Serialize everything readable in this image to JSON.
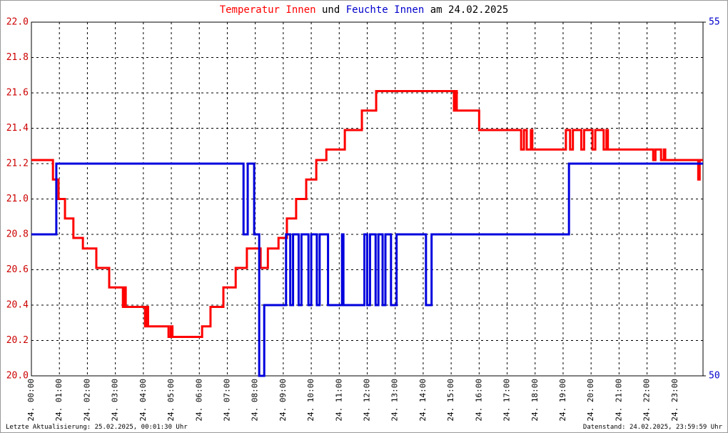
{
  "chart_data": {
    "type": "line",
    "title": [
      "Temperatur Innen",
      "und",
      "Feuchte Innen",
      "am 24.02.2025"
    ],
    "title_colors": [
      "#ff0000",
      "#000000",
      "#0000cc",
      "#000000"
    ],
    "footer_left": "Letzte Aktualisierung: 25.02.2025, 00:01:30 Uhr",
    "footer_right": "Datenstand: 24.02.2025, 23:59:59 Uhr",
    "xlim": [
      0,
      24
    ],
    "xticks": [
      {
        "value": 0,
        "label": "24. 00:00"
      },
      {
        "value": 1,
        "label": "24. 01:00"
      },
      {
        "value": 2,
        "label": "24. 02:00"
      },
      {
        "value": 3,
        "label": "24. 03:00"
      },
      {
        "value": 4,
        "label": "24. 04:00"
      },
      {
        "value": 5,
        "label": "24. 05:00"
      },
      {
        "value": 6,
        "label": "24. 06:00"
      },
      {
        "value": 7,
        "label": "24. 07:00"
      },
      {
        "value": 8,
        "label": "24. 08:00"
      },
      {
        "value": 9,
        "label": "24. 09:00"
      },
      {
        "value": 10,
        "label": "24. 10:00"
      },
      {
        "value": 11,
        "label": "24. 11:00"
      },
      {
        "value": 12,
        "label": "24. 12:00"
      },
      {
        "value": 13,
        "label": "24. 13:00"
      },
      {
        "value": 14,
        "label": "24. 14:00"
      },
      {
        "value": 15,
        "label": "24. 15:00"
      },
      {
        "value": 16,
        "label": "24. 16:00"
      },
      {
        "value": 17,
        "label": "24. 17:00"
      },
      {
        "value": 18,
        "label": "24. 18:00"
      },
      {
        "value": 19,
        "label": "24. 19:00"
      },
      {
        "value": 20,
        "label": "24. 20:00"
      },
      {
        "value": 21,
        "label": "24. 21:00"
      },
      {
        "value": 22,
        "label": "24. 22:00"
      },
      {
        "value": 23,
        "label": "24. 23:00"
      }
    ],
    "ylim": [
      20,
      22
    ],
    "yticks": [
      {
        "value": 20,
        "label": "20.0"
      },
      20.2,
      20.4,
      20.6,
      20.8,
      {
        "value": 21,
        "label": "21.0"
      },
      21.2,
      21.4,
      21.6,
      21.8,
      {
        "value": 22,
        "label": "22.0"
      }
    ],
    "y_color": "#cc0000",
    "y2lim": [
      50,
      55
    ],
    "y2ticks": [
      50,
      55
    ],
    "y2_color": "#0000cc",
    "grid": true,
    "series": [
      {
        "color": "#ff0000",
        "x": [
          0,
          0.77,
          0.77,
          0.97,
          0.97,
          1.2,
          1.2,
          1.5,
          1.5,
          1.84,
          1.84,
          2.32,
          2.32,
          2.78,
          2.78,
          3.27,
          3.27,
          3.33,
          3.33,
          3.37,
          3.37,
          4.06,
          4.06,
          4.12,
          4.12,
          4.17,
          4.17,
          4.9,
          4.9,
          4.98,
          4.98,
          5.04,
          5.04,
          6.1,
          6.1,
          6.4,
          6.4,
          6.86,
          6.86,
          7.3,
          7.3,
          7.7,
          7.7,
          8.19,
          8.19,
          8.45,
          8.45,
          8.83,
          8.83,
          9.13,
          9.13,
          9.46,
          9.46,
          9.82,
          9.82,
          10.18,
          10.18,
          10.54,
          10.54,
          11.2,
          11.2,
          11.81,
          11.81,
          12.32,
          12.32,
          15.1,
          15.1,
          15.15,
          15.15,
          15.2,
          15.2,
          16,
          16,
          17.5,
          17.5,
          17.6,
          17.6,
          17.7,
          17.7,
          17.85,
          17.85,
          17.9,
          17.9,
          19.1,
          19.1,
          19.25,
          19.25,
          19.35,
          19.35,
          19.65,
          19.65,
          19.75,
          19.75,
          20.05,
          20.05,
          20.15,
          20.15,
          20.45,
          20.45,
          20.55,
          20.55,
          20.6,
          20.6,
          22.22,
          22.22,
          22.3,
          22.3,
          22.5,
          22.5,
          22.6,
          22.6,
          22.65,
          22.65,
          23.83,
          23.83,
          23.88,
          23.88,
          24
        ],
        "values": [
          21.22,
          21.22,
          21.11,
          21.11,
          21,
          21,
          20.89,
          20.89,
          20.78,
          20.78,
          20.72,
          20.72,
          20.61,
          20.61,
          20.5,
          20.5,
          20.39,
          20.39,
          20.5,
          20.5,
          20.39,
          20.39,
          20.28,
          20.28,
          20.39,
          20.39,
          20.28,
          20.28,
          20.22,
          20.22,
          20.28,
          20.28,
          20.22,
          20.22,
          20.28,
          20.28,
          20.39,
          20.39,
          20.5,
          20.5,
          20.61,
          20.61,
          20.72,
          20.72,
          20.61,
          20.61,
          20.72,
          20.72,
          20.78,
          20.78,
          20.89,
          20.89,
          21,
          21,
          21.11,
          21.11,
          21.22,
          21.22,
          21.28,
          21.28,
          21.39,
          21.39,
          21.5,
          21.5,
          21.61,
          21.61,
          21.5,
          21.5,
          21.61,
          21.61,
          21.5,
          21.5,
          21.39,
          21.39,
          21.28,
          21.28,
          21.39,
          21.39,
          21.28,
          21.28,
          21.39,
          21.39,
          21.28,
          21.28,
          21.39,
          21.39,
          21.28,
          21.28,
          21.39,
          21.39,
          21.28,
          21.28,
          21.39,
          21.39,
          21.28,
          21.28,
          21.39,
          21.39,
          21.28,
          21.28,
          21.39,
          21.39,
          21.28,
          21.28,
          21.22,
          21.22,
          21.28,
          21.28,
          21.22,
          21.22,
          21.28,
          21.28,
          21.22,
          21.22,
          21.11,
          21.11,
          21.22,
          21.22
        ]
      },
      {
        "color": "#0000dd",
        "axis": "y2",
        "x": [
          0,
          0.89,
          0.89,
          7.58,
          7.58,
          7.73,
          7.73,
          7.96,
          7.96,
          8.14,
          8.14,
          8.32,
          8.32,
          9.1,
          9.1,
          9.25,
          9.25,
          9.35,
          9.35,
          9.55,
          9.55,
          9.65,
          9.65,
          9.9,
          9.9,
          10,
          10,
          10.2,
          10.2,
          10.3,
          10.3,
          10.6,
          10.6,
          11.1,
          11.1,
          11.15,
          11.15,
          11.9,
          11.9,
          12,
          12,
          12.1,
          12.1,
          12.3,
          12.3,
          12.4,
          12.4,
          12.55,
          12.55,
          12.65,
          12.65,
          12.85,
          12.85,
          13.05,
          13.05,
          14.1,
          14.1,
          14.3,
          14.3,
          19.21,
          19.21,
          24
        ],
        "values": [
          52,
          52,
          53,
          53,
          52,
          52,
          53,
          53,
          52,
          52,
          50,
          50,
          51,
          51,
          52,
          52,
          51,
          51,
          52,
          52,
          51,
          51,
          52,
          52,
          51,
          51,
          52,
          52,
          51,
          51,
          52,
          52,
          51,
          51,
          52,
          52,
          51,
          51,
          52,
          52,
          51,
          51,
          52,
          52,
          51,
          51,
          52,
          52,
          51,
          51,
          52,
          52,
          51,
          51,
          52,
          52,
          51,
          51,
          52,
          52,
          53,
          53
        ]
      }
    ]
  }
}
